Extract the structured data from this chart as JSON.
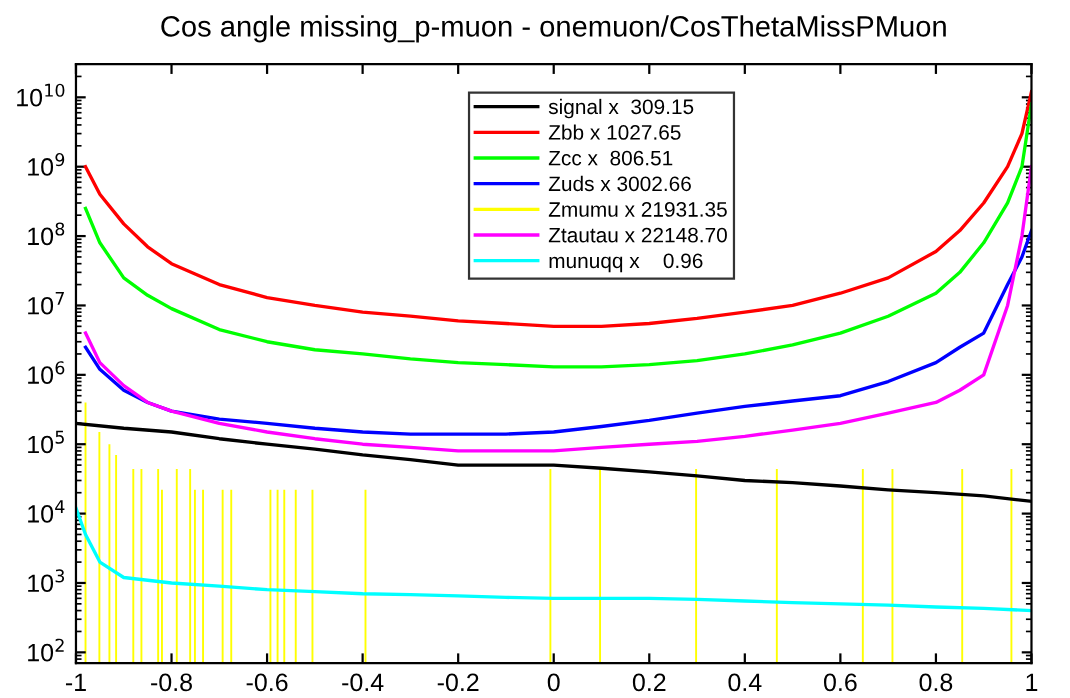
{
  "chart_data": {
    "type": "line",
    "title": "Cos angle missing_p-muon - onemuon/CosThetaMissPMuon",
    "log": true,
    "legend": "top",
    "grid": false,
    "xlim": [
      -1,
      1
    ],
    "xticks": [
      -1,
      -0.8,
      -0.6,
      -0.4,
      -0.2,
      0,
      0.2,
      0.4,
      0.6,
      0.8,
      1
    ],
    "ylim": [
      70,
      30000000000
    ],
    "yticks": [
      {
        "value": 100,
        "label": "10$^{2}$"
      },
      {
        "value": 1000,
        "label": "10$^{3}$"
      },
      {
        "value": 10000,
        "label": "10$^{4}$"
      },
      {
        "value": 100000,
        "label": "10$^{5}$"
      },
      {
        "value": 1000000,
        "label": "10$^{6}$"
      },
      {
        "value": 10000000,
        "label": "10$^{7}$"
      },
      {
        "value": 100000000,
        "label": "10$^{8}$"
      },
      {
        "value": 1000000000,
        "label": "10$^{9}$"
      },
      {
        "value": 10000000000,
        "label": "10$^{10}$"
      }
    ],
    "series": [
      {
        "name": "signal x  309.15",
        "color": "#000000",
        "x": [
          -1,
          -0.9,
          -0.8,
          -0.7,
          -0.6,
          -0.5,
          -0.4,
          -0.3,
          -0.2,
          -0.1,
          0,
          0.1,
          0.2,
          0.3,
          0.4,
          0.5,
          0.6,
          0.7,
          0.8,
          0.9,
          1
        ],
        "values": [
          200000,
          170000,
          150000,
          120000,
          100000,
          85000,
          70000,
          60000,
          50000,
          50000,
          50000,
          45000,
          40000,
          35000,
          30000,
          28000,
          25000,
          22000,
          20000,
          18000,
          15000
        ]
      },
      {
        "name": "Zbb x 1027.65",
        "color": "#ff0000",
        "x": [
          -0.98,
          -0.95,
          -0.9,
          -0.85,
          -0.8,
          -0.7,
          -0.6,
          -0.5,
          -0.4,
          -0.3,
          -0.2,
          -0.1,
          0,
          0.1,
          0.2,
          0.3,
          0.4,
          0.5,
          0.6,
          0.7,
          0.8,
          0.85,
          0.9,
          0.95,
          0.98,
          1
        ],
        "values": [
          1000000000,
          400000000,
          150000000,
          70000000,
          40000000,
          20000000,
          13000000,
          10000000,
          8000000,
          7000000,
          6000000,
          5500000,
          5000000,
          5000000,
          5500000,
          6500000,
          8000000,
          10000000,
          15000000,
          25000000,
          60000000,
          120000000,
          300000000,
          1000000000,
          3000000000,
          12000000000
        ]
      },
      {
        "name": "Zcc x  806.51",
        "color": "#00ff00",
        "x": [
          -0.98,
          -0.95,
          -0.9,
          -0.85,
          -0.8,
          -0.7,
          -0.6,
          -0.5,
          -0.4,
          -0.3,
          -0.2,
          -0.1,
          0,
          0.1,
          0.2,
          0.3,
          0.4,
          0.5,
          0.6,
          0.7,
          0.8,
          0.85,
          0.9,
          0.95,
          0.98,
          1
        ],
        "values": [
          250000000,
          80000000,
          25000000,
          14000000,
          9000000,
          4500000,
          3000000,
          2300000,
          2000000,
          1700000,
          1500000,
          1400000,
          1300000,
          1300000,
          1400000,
          1600000,
          2000000,
          2700000,
          4000000,
          7000000,
          15000000,
          30000000,
          80000000,
          300000000,
          1000000000,
          8000000000
        ]
      },
      {
        "name": "Zuds x 3002.66",
        "color": "#0000ff",
        "x": [
          -0.98,
          -0.95,
          -0.9,
          -0.85,
          -0.8,
          -0.7,
          -0.6,
          -0.5,
          -0.4,
          -0.3,
          -0.2,
          -0.1,
          0,
          0.1,
          0.2,
          0.3,
          0.4,
          0.5,
          0.6,
          0.7,
          0.8,
          0.85,
          0.9,
          0.95,
          0.98,
          1
        ],
        "values": [
          2500000,
          1200000,
          600000,
          400000,
          300000,
          230000,
          200000,
          170000,
          150000,
          140000,
          140000,
          140000,
          150000,
          180000,
          220000,
          280000,
          350000,
          420000,
          500000,
          800000,
          1500000,
          2500000,
          4000000,
          20000000,
          50000000,
          120000000
        ]
      },
      {
        "name": "Zmumu x 21931.35",
        "color": "#ffff00",
        "type": "bar",
        "x": [
          -0.98,
          -0.951,
          -0.93,
          -0.916,
          -0.88,
          -0.863,
          -0.828,
          -0.82,
          -0.789,
          -0.761,
          -0.751,
          -0.734,
          -0.693,
          -0.675,
          -0.593,
          -0.578,
          -0.564,
          -0.54,
          -0.505,
          -0.394,
          -0.007,
          0.097,
          0.298,
          0.467,
          0.647,
          0.709,
          0.855,
          0.958
        ],
        "values": [
          400000,
          150000,
          100000,
          70000,
          44000,
          44000,
          44000,
          22000,
          44000,
          44000,
          22000,
          22000,
          22000,
          22000,
          22000,
          22000,
          22000,
          22000,
          22000,
          22000,
          44000,
          44000,
          44000,
          44000,
          44000,
          44000,
          44000,
          44000
        ]
      },
      {
        "name": "Ztautau x 22148.70",
        "color": "#ff00ff",
        "x": [
          -0.98,
          -0.95,
          -0.9,
          -0.85,
          -0.8,
          -0.7,
          -0.6,
          -0.5,
          -0.4,
          -0.3,
          -0.2,
          -0.1,
          0,
          0.1,
          0.2,
          0.3,
          0.4,
          0.5,
          0.6,
          0.7,
          0.8,
          0.85,
          0.9,
          0.95,
          0.98,
          1
        ],
        "values": [
          4000000,
          1500000,
          700000,
          400000,
          300000,
          200000,
          150000,
          120000,
          100000,
          90000,
          80000,
          80000,
          80000,
          90000,
          100000,
          110000,
          130000,
          160000,
          200000,
          280000,
          400000,
          600000,
          1000000,
          10000000,
          100000000,
          1000000000
        ]
      },
      {
        "name": "munuqq x    0.96",
        "color": "#00ffff",
        "x": [
          -1,
          -0.98,
          -0.95,
          -0.9,
          -0.8,
          -0.7,
          -0.6,
          -0.5,
          -0.4,
          -0.3,
          -0.2,
          -0.1,
          0,
          0.1,
          0.2,
          0.3,
          0.4,
          0.5,
          0.6,
          0.7,
          0.8,
          0.9,
          1
        ],
        "values": [
          12000,
          5000,
          2000,
          1200,
          1000,
          900,
          800,
          750,
          700,
          680,
          650,
          620,
          600,
          600,
          600,
          580,
          550,
          520,
          500,
          480,
          450,
          430,
          400
        ]
      }
    ]
  }
}
